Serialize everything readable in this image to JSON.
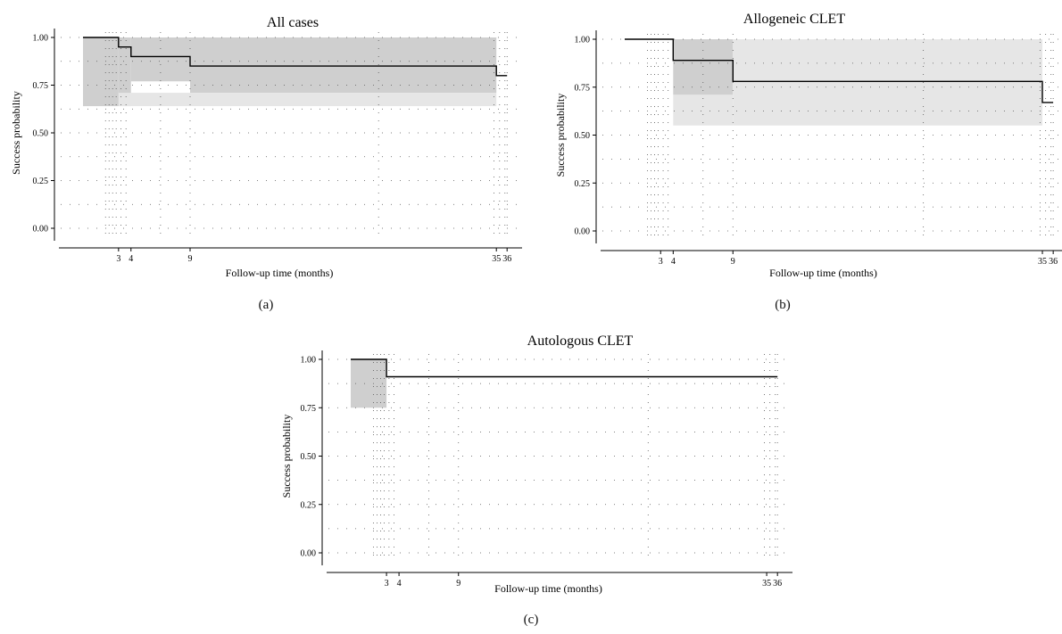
{
  "chart_data": [
    {
      "type": "line",
      "title": "All cases",
      "xlabel": "Follow-up time (months)",
      "ylabel": "Success probability",
      "ylim": [
        0,
        1
      ],
      "xlim": [
        0,
        37
      ],
      "xticks": [
        "3",
        "4",
        "9",
        "35",
        "36"
      ],
      "yticks": [
        "0.00",
        "0.25",
        "0.50",
        "0.75",
        "1.00"
      ],
      "grid": "dotted",
      "panel_label": "(a)",
      "series": [
        {
          "x": [
            0,
            3,
            3,
            4,
            4,
            9,
            9,
            35,
            35,
            36
          ],
          "y": [
            1.0,
            1.0,
            0.95,
            0.95,
            0.9,
            0.9,
            0.85,
            0.85,
            0.8,
            0.8
          ]
        }
      ],
      "ci": [
        {
          "x": [
            0,
            3
          ],
          "lower": 0.64,
          "upper": 1.0
        },
        {
          "x": [
            3,
            4
          ],
          "lower": 0.64,
          "upper": 1.0
        },
        {
          "x": [
            4,
            9
          ],
          "lower": 0.77,
          "upper": 1.0
        },
        {
          "x": [
            9,
            35
          ],
          "lower": 0.71,
          "upper": 1.0
        },
        {
          "x": [
            3,
            35
          ],
          "lower": 0.64,
          "upper": 0.71
        }
      ]
    },
    {
      "type": "line",
      "title": "Allogeneic CLET",
      "xlabel": "Follow-up time (months)",
      "ylabel": "Success probability",
      "ylim": [
        0,
        1
      ],
      "xlim": [
        0,
        37
      ],
      "xticks": [
        "3",
        "4",
        "9",
        "35",
        "36"
      ],
      "yticks": [
        "0.00",
        "0.25",
        "0.50",
        "0.75",
        "1.00"
      ],
      "grid": "dotted",
      "panel_label": "(b)",
      "series": [
        {
          "x": [
            0,
            4,
            4,
            9,
            9,
            35,
            35,
            36
          ],
          "y": [
            1.0,
            1.0,
            0.89,
            0.89,
            0.78,
            0.78,
            0.67,
            0.67
          ]
        }
      ],
      "ci": [
        {
          "x": [
            4,
            9
          ],
          "lower": 0.71,
          "upper": 1.0
        },
        {
          "x": [
            4,
            9
          ],
          "lower": 0.55,
          "upper": 0.71
        },
        {
          "x": [
            9,
            35
          ],
          "lower": 0.55,
          "upper": 1.0
        }
      ]
    },
    {
      "type": "line",
      "title": "Autologous CLET",
      "xlabel": "Follow-up time (months)",
      "ylabel": "Success probability",
      "ylim": [
        0,
        1
      ],
      "xlim": [
        0,
        37
      ],
      "xticks": [
        "3",
        "4",
        "9",
        "35",
        "36"
      ],
      "yticks": [
        "0.00",
        "0.25",
        "0.50",
        "0.75",
        "1.00"
      ],
      "grid": "dotted",
      "panel_label": "(c)",
      "series": [
        {
          "x": [
            0,
            3,
            3,
            36
          ],
          "y": [
            1.0,
            1.0,
            0.91,
            0.91
          ]
        }
      ],
      "ci": [
        {
          "x": [
            0,
            3
          ],
          "lower": 0.75,
          "upper": 1.0
        }
      ]
    }
  ],
  "colors": {
    "ci_dark": "#cfcfcf",
    "ci_light": "#e6e6e6",
    "line": "#000000",
    "grid": "#555555"
  }
}
